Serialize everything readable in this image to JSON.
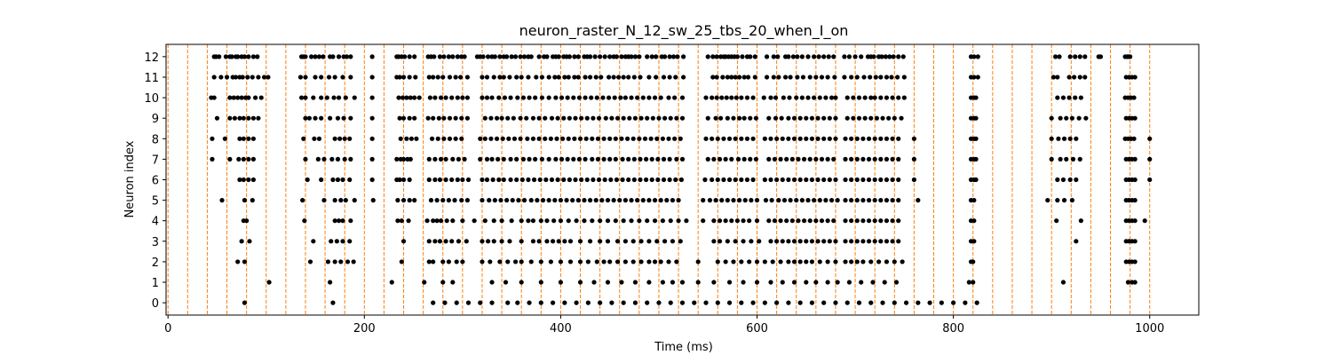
{
  "chart_data": {
    "type": "scatter",
    "title": "neuron_raster_N_12_sw_25_tbs_20_when_I_on",
    "xlabel": "Time (ms)",
    "ylabel": "Neuron index",
    "xlim": [
      -2,
      1050
    ],
    "ylim": [
      -0.6,
      12.6
    ],
    "xticks": [
      0,
      200,
      400,
      600,
      800,
      1000
    ],
    "yticks": [
      0,
      1,
      2,
      3,
      4,
      5,
      6,
      7,
      8,
      9,
      10,
      11,
      12
    ],
    "grid": false,
    "point_color": "#000000",
    "vline_color": "#ff7f0e",
    "vlines": [
      0,
      20,
      40,
      60,
      80,
      100,
      120,
      140,
      160,
      180,
      200,
      220,
      240,
      260,
      280,
      300,
      320,
      340,
      360,
      380,
      400,
      420,
      440,
      460,
      480,
      500,
      520,
      540,
      560,
      580,
      600,
      620,
      640,
      660,
      680,
      700,
      720,
      740,
      760,
      780,
      800,
      820,
      840,
      860,
      880,
      900,
      920,
      940,
      960,
      980,
      1000
    ],
    "spikes": {
      "12": [
        47,
        49,
        52,
        59,
        63,
        65,
        69,
        71,
        75,
        78,
        82,
        87,
        91,
        136,
        138,
        140,
        146,
        150,
        154,
        158,
        165,
        168,
        174,
        179,
        182,
        186,
        208,
        233,
        235,
        238,
        241,
        246,
        251,
        265,
        268,
        271,
        277,
        281,
        286,
        290,
        295,
        299,
        302,
        315,
        318,
        321,
        326,
        330,
        333,
        338,
        342,
        345,
        350,
        354,
        359,
        363,
        367,
        370,
        378,
        383,
        386,
        392,
        395,
        398,
        403,
        406,
        409,
        414,
        418,
        424,
        427,
        430,
        435,
        440,
        445,
        450,
        454,
        457,
        462,
        466,
        469,
        472,
        476,
        480,
        488,
        493,
        497,
        503,
        506,
        511,
        515,
        519,
        525,
        550,
        555,
        559,
        563,
        566,
        568,
        571,
        574,
        577,
        580,
        585,
        590,
        593,
        598,
        610,
        617,
        621,
        629,
        632,
        637,
        641,
        646,
        652,
        658,
        663,
        668,
        673,
        678,
        689,
        694,
        700,
        706,
        713,
        716,
        719,
        724,
        727,
        731,
        735,
        739,
        744,
        749,
        818,
        821,
        825,
        904,
        908,
        919,
        924,
        929,
        934,
        948,
        950,
        975,
        977,
        979,
        980
      ],
      "11": [
        47,
        54,
        60,
        66,
        69,
        73,
        76,
        81,
        86,
        92,
        98,
        102,
        135,
        140,
        150,
        156,
        164,
        170,
        178,
        186,
        208,
        233,
        236,
        240,
        246,
        252,
        266,
        270,
        275,
        280,
        287,
        293,
        298,
        305,
        320,
        325,
        332,
        338,
        342,
        348,
        355,
        360,
        367,
        375,
        381,
        388,
        394,
        398,
        404,
        408,
        414,
        418,
        425,
        430,
        436,
        441,
        449,
        454,
        459,
        464,
        469,
        475,
        481,
        490,
        497,
        505,
        511,
        517,
        525,
        555,
        559,
        565,
        570,
        574,
        578,
        582,
        587,
        591,
        598,
        610,
        617,
        622,
        629,
        634,
        641,
        647,
        654,
        660,
        666,
        672,
        679,
        689,
        696,
        702,
        709,
        715,
        721,
        726,
        732,
        737,
        743,
        750,
        818,
        821,
        825,
        902,
        906,
        918,
        923,
        929,
        934,
        976,
        979,
        982,
        985
      ],
      "10": [
        44,
        47,
        63,
        67,
        71,
        75,
        79,
        82,
        89,
        95,
        136,
        140,
        148,
        156,
        162,
        169,
        174,
        181,
        190,
        208,
        235,
        239,
        243,
        247,
        251,
        256,
        267,
        272,
        278,
        283,
        289,
        295,
        300,
        305,
        320,
        325,
        330,
        337,
        343,
        349,
        356,
        362,
        368,
        374,
        381,
        388,
        395,
        401,
        407,
        413,
        419,
        425,
        431,
        437,
        443,
        449,
        455,
        461,
        466,
        472,
        478,
        484,
        490,
        496,
        502,
        510,
        516,
        524,
        548,
        554,
        559,
        564,
        569,
        574,
        579,
        584,
        590,
        596,
        607,
        614,
        619,
        627,
        633,
        640,
        646,
        652,
        658,
        664,
        670,
        676,
        680,
        692,
        698,
        704,
        710,
        716,
        720,
        726,
        732,
        738,
        744,
        750,
        818,
        821,
        823,
        906,
        912,
        918,
        924,
        930,
        975,
        978,
        981,
        984
      ],
      "9": [
        50,
        63,
        68,
        73,
        77,
        82,
        87,
        92,
        140,
        144,
        150,
        156,
        165,
        173,
        179,
        186,
        208,
        236,
        240,
        246,
        251,
        265,
        270,
        276,
        281,
        287,
        293,
        299,
        305,
        323,
        329,
        335,
        340,
        346,
        352,
        359,
        365,
        372,
        378,
        384,
        391,
        397,
        403,
        409,
        415,
        421,
        427,
        433,
        439,
        446,
        452,
        458,
        464,
        470,
        476,
        482,
        488,
        494,
        500,
        506,
        512,
        518,
        524,
        550,
        558,
        563,
        570,
        576,
        582,
        587,
        593,
        599,
        612,
        619,
        625,
        632,
        638,
        644,
        650,
        656,
        662,
        668,
        674,
        680,
        692,
        698,
        704,
        710,
        716,
        722,
        728,
        734,
        740,
        747,
        818,
        821,
        823,
        900,
        909,
        915,
        921,
        928,
        935,
        976,
        979,
        982,
        985
      ],
      "8": [
        45,
        58,
        73,
        77,
        82,
        87,
        138,
        149,
        154,
        170,
        175,
        180,
        185,
        208,
        237,
        243,
        248,
        253,
        269,
        275,
        281,
        287,
        293,
        299,
        318,
        323,
        329,
        335,
        341,
        347,
        353,
        359,
        366,
        372,
        378,
        384,
        390,
        396,
        402,
        408,
        414,
        420,
        426,
        432,
        438,
        444,
        450,
        456,
        462,
        468,
        474,
        480,
        486,
        492,
        498,
        504,
        510,
        516,
        522,
        548,
        554,
        560,
        566,
        572,
        578,
        584,
        590,
        596,
        608,
        614,
        620,
        626,
        632,
        638,
        644,
        650,
        656,
        662,
        668,
        674,
        680,
        690,
        696,
        702,
        708,
        714,
        720,
        726,
        732,
        738,
        744,
        760,
        818,
        821,
        823,
        900,
        907,
        913,
        919,
        925,
        975,
        978,
        981,
        984,
        1000
      ],
      "7": [
        45,
        63,
        72,
        77,
        82,
        87,
        140,
        153,
        159,
        167,
        173,
        180,
        186,
        208,
        233,
        237,
        240,
        244,
        247,
        266,
        272,
        278,
        283,
        290,
        296,
        302,
        318,
        325,
        330,
        336,
        342,
        349,
        355,
        362,
        368,
        374,
        381,
        388,
        395,
        401,
        407,
        413,
        419,
        425,
        432,
        438,
        444,
        450,
        456,
        463,
        469,
        475,
        481,
        487,
        493,
        499,
        505,
        511,
        518,
        524,
        550,
        556,
        562,
        568,
        574,
        581,
        587,
        593,
        599,
        612,
        618,
        624,
        630,
        636,
        642,
        648,
        654,
        660,
        666,
        672,
        678,
        690,
        696,
        702,
        708,
        714,
        720,
        726,
        732,
        738,
        744,
        760,
        818,
        821,
        823,
        900,
        909,
        915,
        922,
        929,
        976,
        979,
        982,
        985,
        1000
      ],
      "6": [
        73,
        77,
        82,
        87,
        142,
        156,
        168,
        173,
        178,
        185,
        208,
        233,
        236,
        240,
        246,
        266,
        272,
        277,
        283,
        289,
        295,
        300,
        306,
        320,
        325,
        331,
        337,
        342,
        349,
        355,
        361,
        367,
        373,
        379,
        385,
        391,
        397,
        403,
        409,
        415,
        421,
        427,
        433,
        439,
        445,
        451,
        457,
        463,
        469,
        475,
        481,
        487,
        493,
        499,
        505,
        511,
        517,
        523,
        547,
        554,
        560,
        566,
        572,
        578,
        584,
        590,
        596,
        608,
        614,
        620,
        626,
        632,
        638,
        644,
        650,
        656,
        662,
        668,
        674,
        680,
        690,
        696,
        702,
        708,
        714,
        720,
        726,
        732,
        738,
        744,
        760,
        818,
        821,
        823,
        906,
        912,
        919,
        925,
        976,
        979,
        982,
        985,
        1000
      ],
      "5": [
        55,
        78,
        86,
        137,
        159,
        170,
        176,
        181,
        190,
        209,
        234,
        240,
        246,
        251,
        268,
        274,
        280,
        286,
        292,
        299,
        305,
        320,
        327,
        333,
        339,
        345,
        351,
        357,
        363,
        370,
        376,
        382,
        388,
        394,
        400,
        406,
        412,
        418,
        424,
        430,
        436,
        442,
        448,
        454,
        460,
        466,
        472,
        478,
        484,
        490,
        496,
        502,
        508,
        514,
        520,
        545,
        552,
        558,
        564,
        570,
        576,
        582,
        588,
        594,
        600,
        609,
        615,
        622,
        628,
        634,
        640,
        646,
        652,
        658,
        664,
        670,
        676,
        682,
        690,
        696,
        702,
        708,
        714,
        720,
        726,
        732,
        738,
        744,
        764,
        818,
        821,
        896,
        906,
        913,
        921,
        976,
        979,
        982,
        985
      ],
      "4": [
        77,
        80,
        139,
        170,
        174,
        178,
        186,
        234,
        238,
        245,
        264,
        270,
        274,
        278,
        284,
        290,
        300,
        312,
        323,
        332,
        340,
        350,
        360,
        367,
        372,
        380,
        386,
        393,
        400,
        408,
        416,
        424,
        432,
        440,
        448,
        456,
        464,
        472,
        480,
        488,
        496,
        504,
        512,
        520,
        528,
        545,
        556,
        562,
        568,
        574,
        580,
        586,
        592,
        600,
        612,
        618,
        624,
        630,
        636,
        642,
        648,
        654,
        660,
        666,
        672,
        678,
        690,
        696,
        702,
        708,
        714,
        720,
        726,
        732,
        738,
        744,
        818,
        821,
        905,
        930,
        976,
        979,
        982,
        985,
        995
      ],
      "3": [
        75,
        83,
        148,
        166,
        172,
        178,
        185,
        240,
        266,
        272,
        277,
        283,
        289,
        296,
        304,
        320,
        326,
        332,
        340,
        348,
        360,
        372,
        378,
        386,
        392,
        398,
        404,
        410,
        420,
        430,
        440,
        448,
        458,
        466,
        474,
        482,
        490,
        498,
        506,
        514,
        522,
        556,
        562,
        570,
        578,
        586,
        594,
        602,
        614,
        620,
        626,
        632,
        638,
        644,
        650,
        656,
        662,
        668,
        674,
        680,
        690,
        696,
        702,
        708,
        714,
        720,
        726,
        732,
        738,
        744,
        818,
        821,
        925,
        976,
        979,
        982,
        985
      ],
      "2": [
        71,
        78,
        145,
        163,
        170,
        176,
        183,
        189,
        238,
        266,
        270,
        280,
        286,
        294,
        300,
        320,
        328,
        338,
        346,
        354,
        360,
        370,
        380,
        390,
        400,
        410,
        420,
        428,
        437,
        444,
        450,
        458,
        466,
        474,
        482,
        490,
        496,
        502,
        510,
        518,
        540,
        560,
        568,
        576,
        584,
        592,
        600,
        608,
        616,
        624,
        632,
        638,
        644,
        650,
        656,
        664,
        672,
        680,
        690,
        696,
        702,
        708,
        716,
        724,
        732,
        740,
        748,
        818,
        820,
        976,
        979,
        982,
        985
      ],
      "1": [
        103,
        165,
        228,
        261,
        280,
        290,
        330,
        344,
        360,
        380,
        400,
        420,
        434,
        448,
        462,
        476,
        490,
        504,
        514,
        524,
        540,
        556,
        572,
        586,
        600,
        614,
        626,
        638,
        650,
        660,
        672,
        682,
        694,
        706,
        718,
        730,
        742,
        816,
        820,
        912,
        978,
        982,
        985
      ],
      "0": [
        78,
        168,
        270,
        282,
        294,
        306,
        318,
        330,
        346,
        356,
        368,
        380,
        392,
        404,
        416,
        428,
        440,
        452,
        464,
        476,
        488,
        500,
        512,
        524,
        536,
        548,
        560,
        572,
        584,
        596,
        608,
        620,
        632,
        644,
        656,
        668,
        680,
        692,
        704,
        716,
        728,
        740,
        752,
        764,
        776,
        788,
        800,
        812,
        824
      ]
    }
  }
}
